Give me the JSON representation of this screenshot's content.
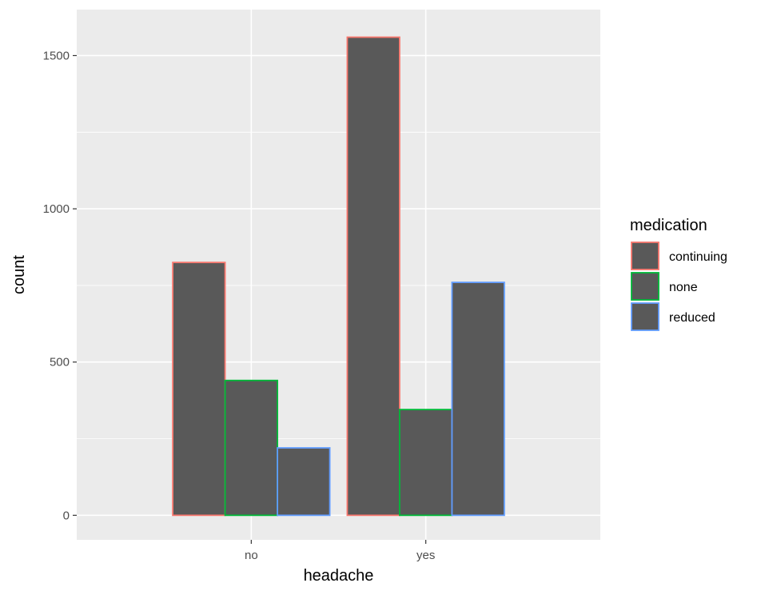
{
  "chart_data": {
    "type": "bar",
    "position": "dodge",
    "xlabel": "headache",
    "ylabel": "count",
    "categories": [
      "no",
      "yes"
    ],
    "ylim": [
      -80,
      1650
    ],
    "yticks": [
      0,
      500,
      1000,
      1500
    ],
    "grid": true,
    "legend": {
      "title": "medication",
      "placement": "right"
    },
    "series": [
      {
        "name": "continuing",
        "values": [
          825,
          1560
        ],
        "outline_color": "#F8766D"
      },
      {
        "name": "none",
        "values": [
          440,
          345
        ],
        "outline_color": "#00BA38"
      },
      {
        "name": "reduced",
        "values": [
          220,
          760
        ],
        "outline_color": "#619CFF"
      }
    ],
    "bar_fill": "#595959",
    "panel_background": "#EBEBEB",
    "gridline_color": "#FFFFFF"
  }
}
